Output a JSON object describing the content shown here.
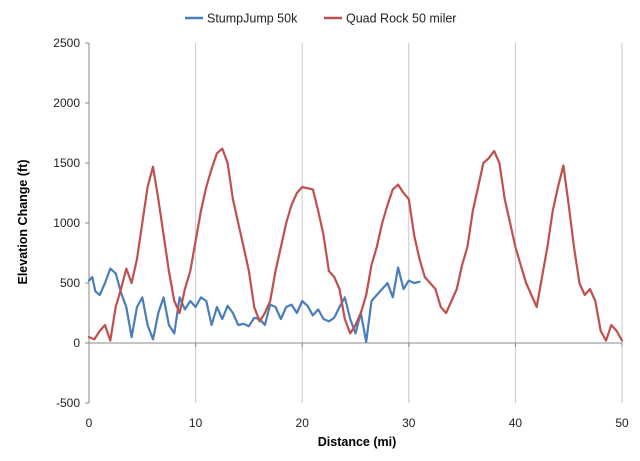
{
  "chart_data": {
    "type": "line",
    "title": "",
    "xlabel": "Distance (mi)",
    "ylabel": "Elevation Change (ft)",
    "xlim": [
      0,
      50
    ],
    "ylim": [
      -500,
      2500
    ],
    "xticks": [
      0,
      10,
      20,
      30,
      40,
      50
    ],
    "yticks": [
      -500,
      0,
      500,
      1000,
      1500,
      2000,
      2500
    ],
    "grid": {
      "x": true,
      "y": false
    },
    "legend": "top-center",
    "series": [
      {
        "name": "StumpJump 50k",
        "color": "#4a7ebb",
        "x": [
          0,
          0.3,
          0.6,
          1.0,
          1.5,
          2.0,
          2.5,
          3.0,
          3.5,
          4.0,
          4.5,
          5.0,
          5.5,
          6.0,
          6.5,
          7.0,
          7.5,
          8.0,
          8.5,
          9.0,
          9.5,
          10.0,
          10.5,
          11.0,
          11.5,
          12.0,
          12.5,
          13.0,
          13.5,
          14.0,
          14.5,
          15.0,
          15.5,
          16.0,
          16.5,
          17.0,
          17.5,
          18.0,
          18.5,
          19.0,
          19.5,
          20.0,
          20.5,
          21.0,
          21.5,
          22.0,
          22.5,
          23.0,
          23.5,
          24.0,
          24.5,
          25.0,
          25.5,
          26.0,
          26.5,
          27.0,
          27.5,
          28.0,
          28.5,
          29.0,
          29.5,
          30.0,
          30.5,
          31.0
        ],
        "values": [
          520,
          550,
          430,
          400,
          500,
          620,
          580,
          420,
          300,
          50,
          300,
          380,
          150,
          30,
          250,
          380,
          150,
          80,
          380,
          280,
          350,
          300,
          380,
          350,
          150,
          300,
          200,
          310,
          250,
          150,
          160,
          140,
          210,
          200,
          150,
          320,
          300,
          200,
          300,
          320,
          250,
          350,
          310,
          230,
          280,
          200,
          180,
          210,
          300,
          380,
          200,
          80,
          250,
          10,
          350,
          400,
          450,
          500,
          380,
          630,
          450,
          520,
          500,
          510
        ]
      },
      {
        "name": "Quad Rock 50 miler",
        "color": "#c0504d",
        "x": [
          0,
          0.5,
          1.0,
          1.5,
          2.0,
          2.5,
          3.0,
          3.5,
          4.0,
          4.5,
          5.0,
          5.5,
          6.0,
          6.5,
          7.0,
          7.5,
          8.0,
          8.5,
          9.0,
          9.5,
          10.0,
          10.5,
          11.0,
          11.5,
          12.0,
          12.5,
          13.0,
          13.5,
          14.0,
          14.5,
          15.0,
          15.5,
          16.0,
          16.5,
          17.0,
          17.5,
          18.0,
          18.5,
          19.0,
          19.5,
          20.0,
          20.5,
          21.0,
          21.5,
          22.0,
          22.5,
          23.0,
          23.5,
          24.0,
          24.5,
          25.0,
          25.5,
          26.0,
          26.5,
          27.0,
          27.5,
          28.0,
          28.5,
          29.0,
          29.5,
          30.0,
          30.5,
          31.0,
          31.5,
          32.0,
          32.5,
          33.0,
          33.5,
          34.0,
          34.5,
          35.0,
          35.5,
          36.0,
          36.5,
          37.0,
          37.5,
          38.0,
          38.5,
          39.0,
          39.5,
          40.0,
          40.5,
          41.0,
          41.5,
          42.0,
          42.5,
          43.0,
          43.5,
          44.0,
          44.5,
          45.0,
          45.5,
          46.0,
          46.5,
          47.0,
          47.5,
          48.0,
          48.5,
          49.0,
          49.5,
          50.0
        ],
        "values": [
          50,
          30,
          100,
          150,
          20,
          300,
          450,
          620,
          500,
          700,
          1000,
          1300,
          1470,
          1200,
          900,
          600,
          350,
          250,
          450,
          600,
          850,
          1100,
          1300,
          1450,
          1580,
          1620,
          1500,
          1200,
          1000,
          800,
          600,
          300,
          180,
          250,
          350,
          600,
          800,
          1000,
          1150,
          1250,
          1300,
          1290,
          1280,
          1100,
          900,
          600,
          550,
          450,
          200,
          80,
          150,
          250,
          400,
          650,
          800,
          1000,
          1150,
          1280,
          1320,
          1250,
          1200,
          900,
          700,
          550,
          500,
          450,
          300,
          250,
          350,
          450,
          650,
          800,
          1100,
          1300,
          1500,
          1540,
          1600,
          1500,
          1200,
          1000,
          800,
          650,
          500,
          400,
          300,
          550,
          800,
          1100,
          1300,
          1480,
          1150,
          800,
          500,
          400,
          450,
          350,
          100,
          20,
          150,
          100,
          20
        ]
      }
    ]
  }
}
